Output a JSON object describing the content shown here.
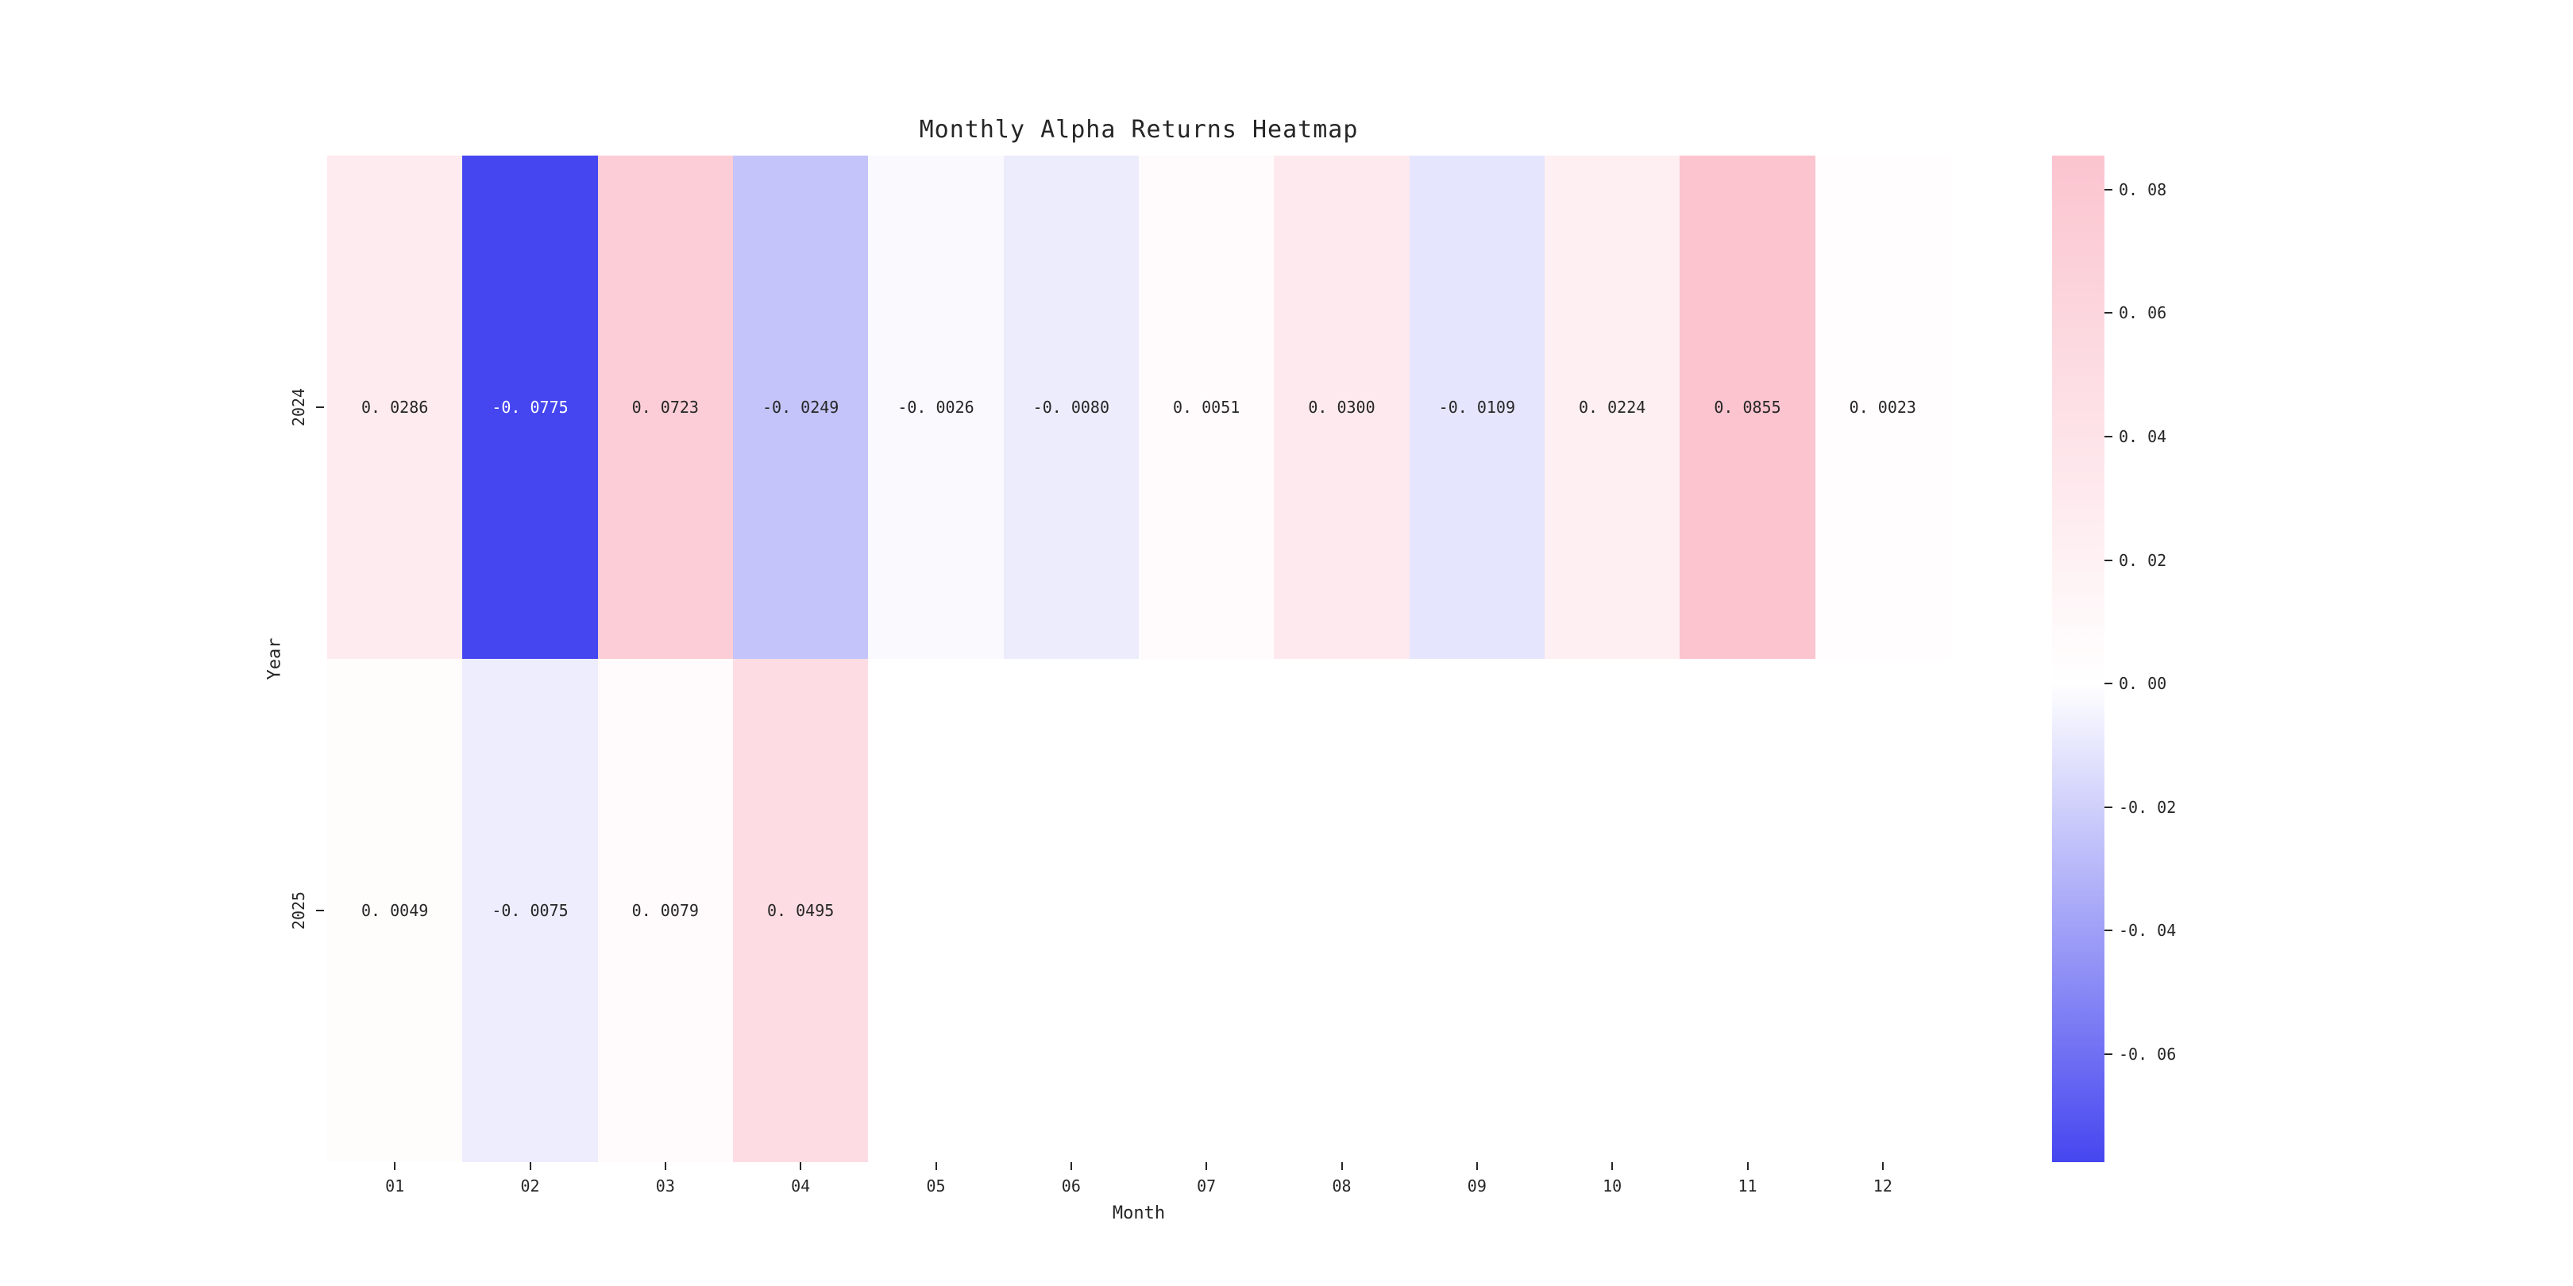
{
  "title": "Monthly Alpha Returns Heatmap",
  "chart_data": {
    "type": "heatmap",
    "title": "Monthly Alpha Returns Heatmap",
    "xlabel": "Month",
    "ylabel": "Year",
    "x_categories": [
      "01",
      "02",
      "03",
      "04",
      "05",
      "06",
      "07",
      "08",
      "09",
      "10",
      "11",
      "12"
    ],
    "y_categories": [
      "2024",
      "2025"
    ],
    "values": [
      [
        0.0286,
        -0.0775,
        0.0723,
        -0.0249,
        -0.0026,
        -0.008,
        0.0051,
        0.03,
        -0.0109,
        0.0224,
        0.0855,
        0.0023
      ],
      [
        0.0049,
        -0.0075,
        0.0079,
        0.0495,
        null,
        null,
        null,
        null,
        null,
        null,
        null,
        null
      ]
    ],
    "cell_labels": [
      [
        "0. 0286",
        "-0. 0775",
        "0. 0723",
        "-0. 0249",
        "-0. 0026",
        "-0. 0080",
        "0. 0051",
        "0. 0300",
        "-0. 0109",
        "0. 0224",
        "0. 0855",
        "0. 0023"
      ],
      [
        "0. 0049",
        "-0. 0075",
        "0. 0079",
        "0. 0495",
        "",
        "",
        "",
        "",
        "",
        "",
        "",
        ""
      ]
    ],
    "grid": false,
    "legend_position": "right-colorbar",
    "colorbar": {
      "vmin": -0.0775,
      "vmax": 0.0855,
      "ticks": [
        0.08,
        0.06,
        0.04,
        0.02,
        0.0,
        -0.02,
        -0.04,
        -0.06
      ],
      "tick_labels": [
        "0. 08",
        "0. 06",
        "0. 04",
        "0. 02",
        "0. 00",
        "-0. 02",
        "-0. 04",
        "-0. 06"
      ]
    },
    "colors": {
      "positive_end": "#fbc4cf",
      "zero": "#ffffff",
      "negative_end": "#4646f0",
      "empty_cell": "#ffffff",
      "text_dark": "#262626",
      "text_light": "#ffffff",
      "background": "#ffffff"
    }
  }
}
